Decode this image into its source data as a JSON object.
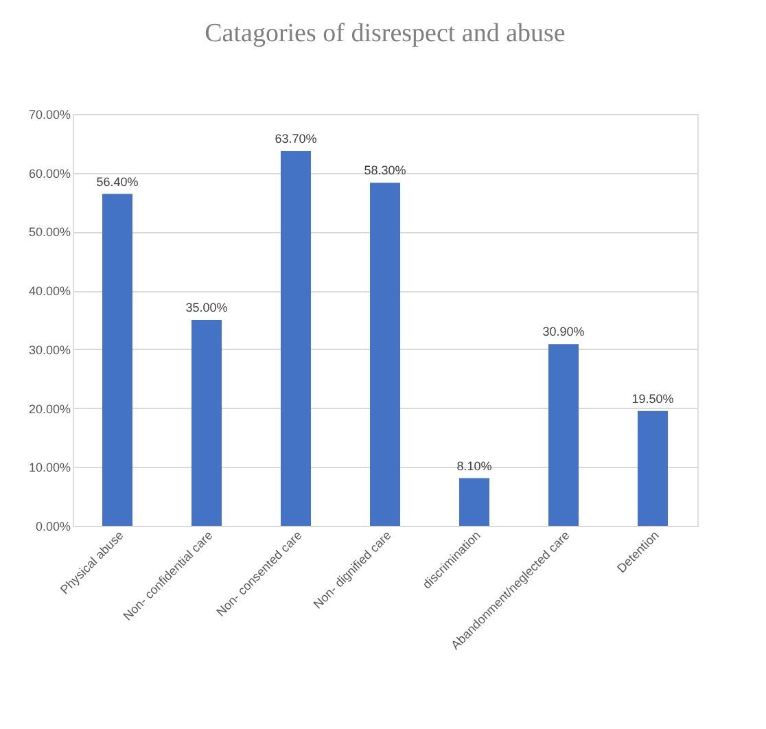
{
  "chart_data": {
    "type": "bar",
    "title": "Catagories of disrespect and abuse",
    "categories": [
      "Physical abuse",
      "Non- confidential care",
      "Non- consented care",
      "Non- dignified care",
      "discrimination",
      "Abandonment/neglected care",
      "Detention"
    ],
    "values": [
      56.4,
      35.0,
      63.7,
      58.3,
      8.1,
      30.9,
      19.5
    ],
    "value_labels": [
      "56.40%",
      "35.00%",
      "63.70%",
      "58.30%",
      "8.10%",
      "30.90%",
      "19.50%"
    ],
    "color": "#4472c4",
    "ylim": [
      0,
      70
    ],
    "yticks": [
      {
        "value": 0,
        "label": "0.00%"
      },
      {
        "value": 10,
        "label": "10.00%"
      },
      {
        "value": 20,
        "label": "20.00%"
      },
      {
        "value": 30,
        "label": "30.00%"
      },
      {
        "value": 40,
        "label": "40.00%"
      },
      {
        "value": 50,
        "label": "50.00%"
      },
      {
        "value": 60,
        "label": "60.00%"
      },
      {
        "value": 70,
        "label": "70.00%"
      }
    ],
    "grid": "y"
  }
}
